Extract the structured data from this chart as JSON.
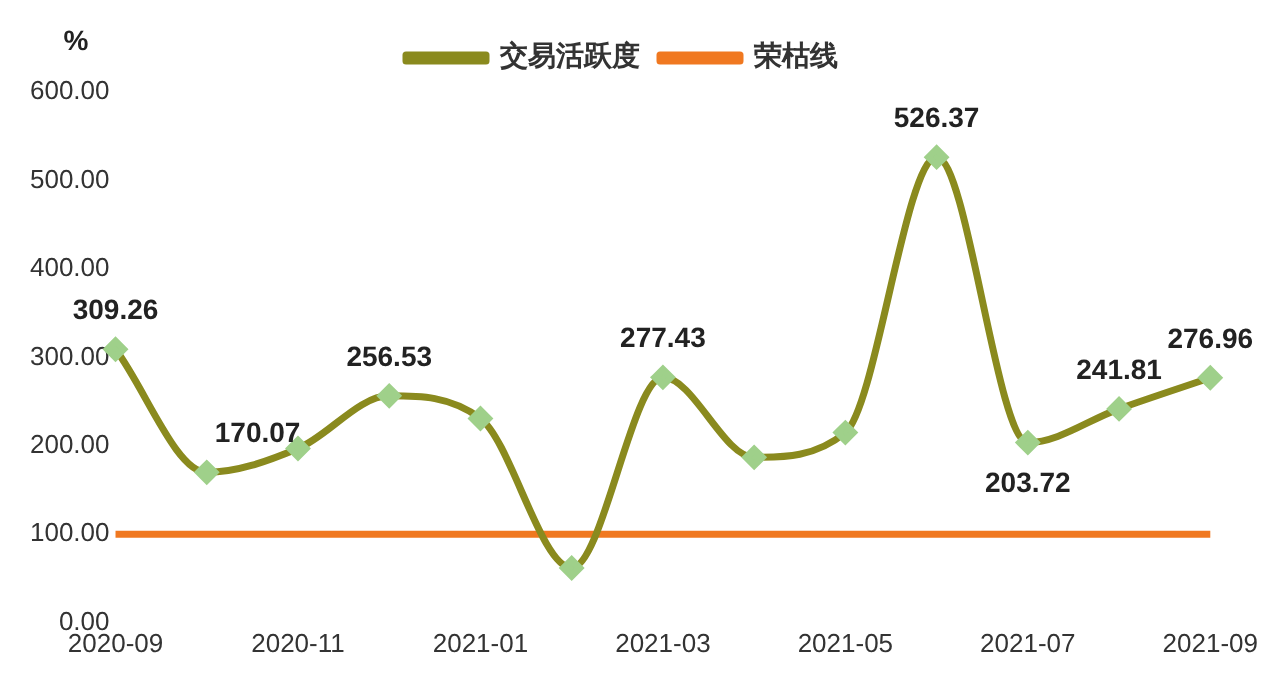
{
  "chart_data": {
    "type": "line",
    "ylabel": "%",
    "categories": [
      "2020-09",
      null,
      "2020-11",
      null,
      "2021-01",
      null,
      "2021-03",
      null,
      "2021-05",
      null,
      "2021-07",
      null,
      "2021-09"
    ],
    "series": [
      {
        "name": "交易活跃度",
        "color": "#8a8a1e",
        "values": [
          309.26,
          170.07,
          197,
          256.53,
          231,
          62,
          277.43,
          187,
          215,
          526.37,
          203.72,
          241.81,
          276.96
        ],
        "value_labels": [
          "309.26",
          "170.07",
          null,
          "256.53",
          null,
          null,
          "277.43",
          null,
          null,
          "526.37",
          "203.72",
          "241.81",
          "276.96"
        ],
        "marker": "diamond"
      },
      {
        "name": "荣枯线",
        "color": "#f07820",
        "values": [
          100,
          100,
          100,
          100,
          100,
          100,
          100,
          100,
          100,
          100,
          100,
          100,
          100
        ],
        "marker": "none"
      }
    ],
    "ylim": [
      0,
      600
    ],
    "yticks": [
      {
        "value": 0,
        "label": "0.00"
      },
      {
        "value": 100,
        "label": "100.00"
      },
      {
        "value": 200,
        "label": "200.00"
      },
      {
        "value": 300,
        "label": "300.00"
      },
      {
        "value": 400,
        "label": "400.00"
      },
      {
        "value": 500,
        "label": "500.00"
      },
      {
        "value": 600,
        "label": "600.00"
      }
    ],
    "grid": false,
    "legend": "top"
  }
}
